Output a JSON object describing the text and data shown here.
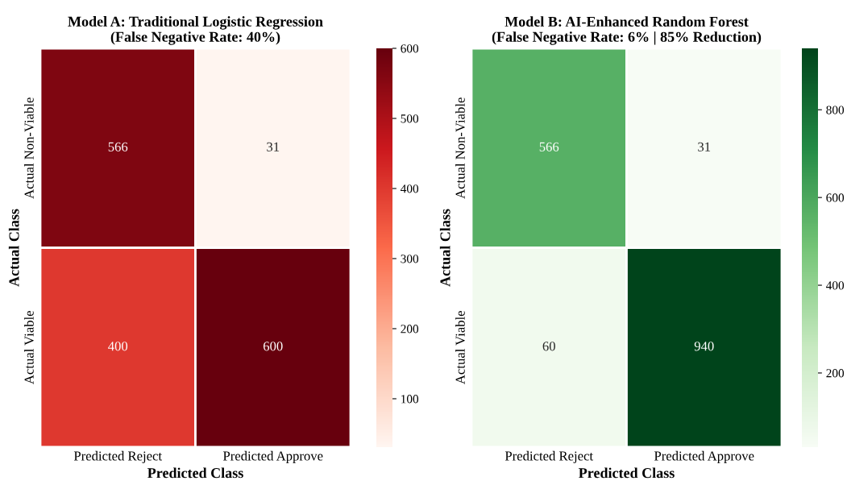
{
  "chart_data": [
    {
      "type": "heatmap",
      "title": "Model A: Traditional Logistic Regression\n(False Negative Rate: 40%)",
      "xlabel": "Predicted Class",
      "ylabel": "Actual Class",
      "categories": [
        "Predicted Reject",
        "Predicted Approve"
      ],
      "y_categories": [
        "Actual Non-Viable",
        "Actual Viable"
      ],
      "cells": [
        [
          566,
          31
        ],
        [
          400,
          600
        ]
      ],
      "data_labels": true,
      "colors": [
        "#fff5f0",
        "#fcbba1",
        "#fb6a4a",
        "#cb181d",
        "#67000d"
      ],
      "clim": [
        31,
        600
      ],
      "cticks": [
        100,
        200,
        300,
        400,
        500,
        600
      ]
    },
    {
      "type": "heatmap",
      "title": "Model B: AI-Enhanced Random Forest\n(False Negative Rate: 6% | 85% Reduction)",
      "xlabel": "Predicted Class",
      "ylabel": "Actual Class",
      "categories": [
        "Predicted Reject",
        "Predicted Approve"
      ],
      "y_categories": [
        "Actual Non-Viable",
        "Actual Viable"
      ],
      "cells": [
        [
          566,
          31
        ],
        [
          60,
          940
        ]
      ],
      "data_labels": true,
      "colors": [
        "#f7fcf5",
        "#c7e9c0",
        "#74c476",
        "#238b45",
        "#00441b"
      ],
      "clim": [
        31,
        940
      ],
      "cticks": [
        200,
        400,
        600,
        800
      ]
    }
  ]
}
